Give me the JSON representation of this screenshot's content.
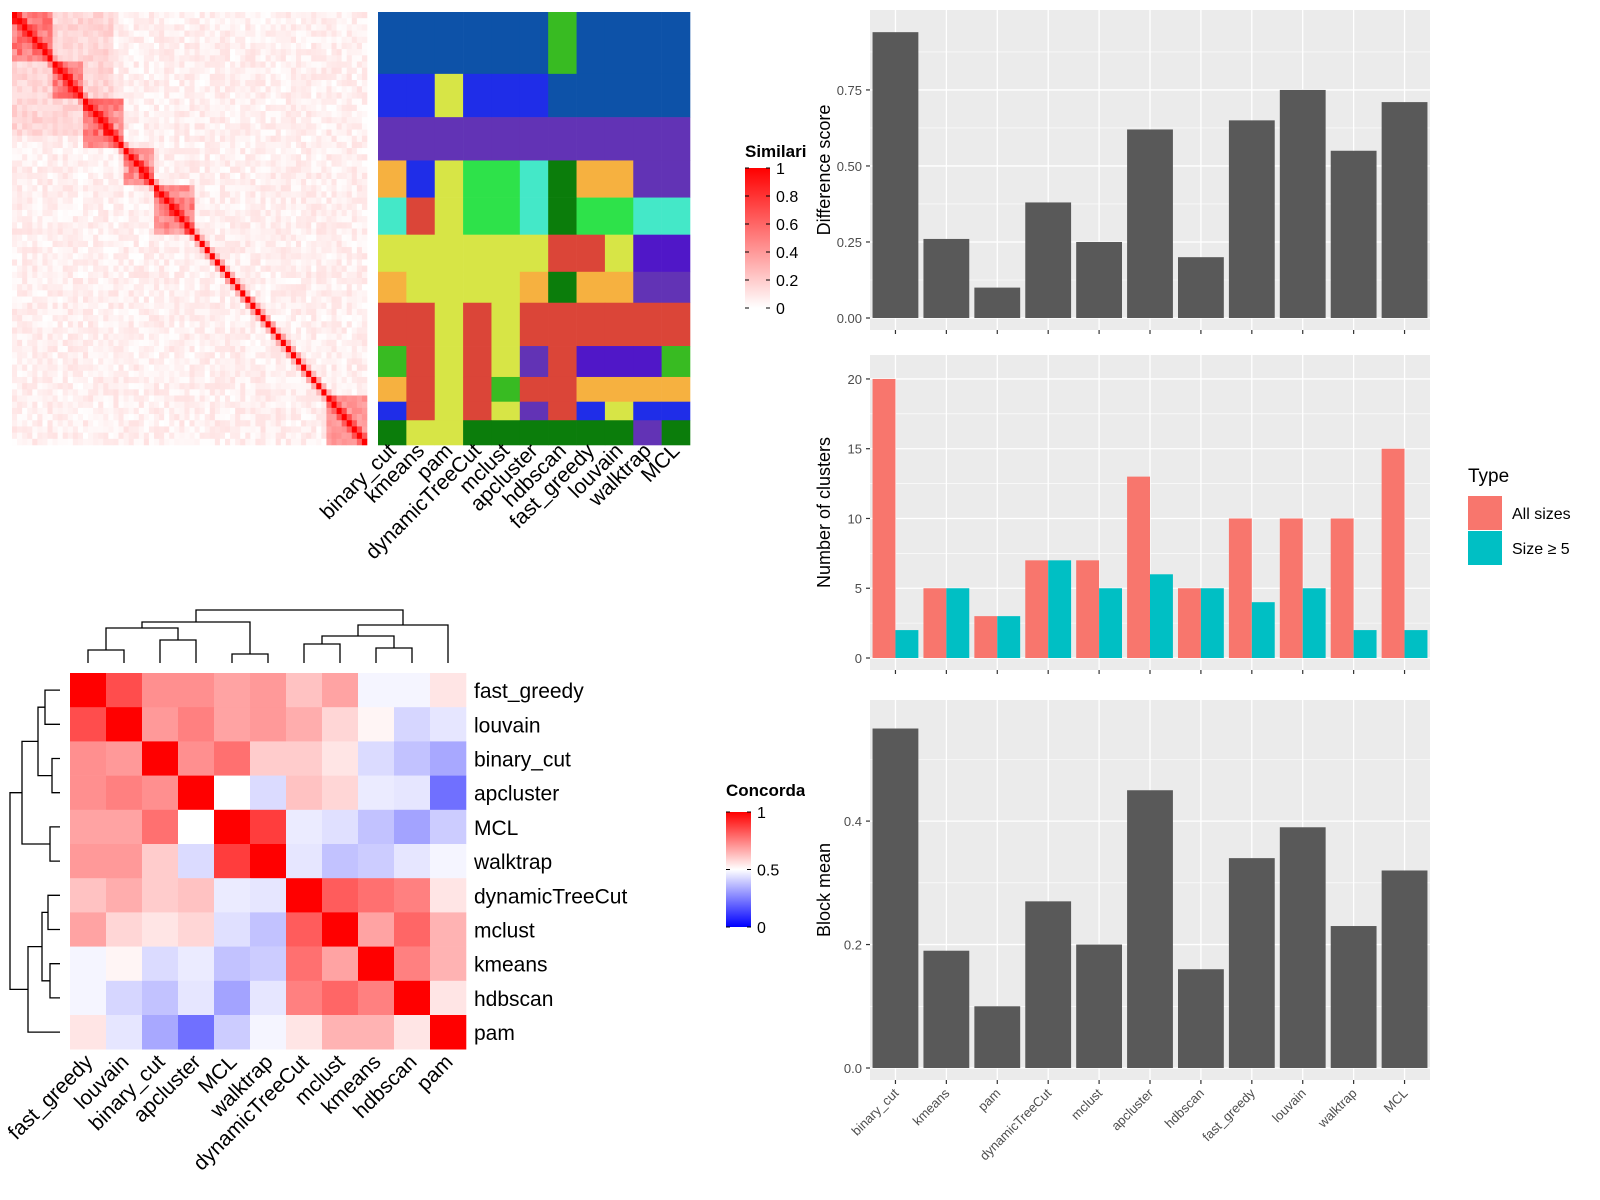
{
  "methods": [
    "binary_cut",
    "kmeans",
    "pam",
    "dynamicTreeCut",
    "mclust",
    "apcluster",
    "hdbscan",
    "fast_greedy",
    "louvain",
    "walktrap",
    "MCL"
  ],
  "colors": {
    "bar": "#595959",
    "panel_bg": "#ebebeb",
    "grid": "#ffffff",
    "all_sizes": "#f8766d",
    "size5": "#00bfc4",
    "sim_high": "#ff0000",
    "sim_low": "#ffffff",
    "conc_high": "#ff0000",
    "conc_mid": "#ffffff",
    "conc_low": "#0000ff"
  },
  "similarity_heatmap": {
    "legend_title": "Similarity",
    "legend_ticks": [
      "0",
      "0.2",
      "0.4",
      "0.6",
      "0.8",
      "1"
    ]
  },
  "membership_heatmap": {
    "column_labels": [
      "binary_cut",
      "kmeans",
      "pam",
      "dynamicTreeCut",
      "mclust",
      "apcluster",
      "hdbscan",
      "fast_greedy",
      "louvain",
      "walktrap",
      "MCL"
    ]
  },
  "concordance_heatmap": {
    "legend_title": "Concordance",
    "legend_ticks": [
      "0",
      "0.5",
      "1"
    ],
    "order": [
      "fast_greedy",
      "louvain",
      "binary_cut",
      "apcluster",
      "MCL",
      "walktrap",
      "dynamicTreeCut",
      "mclust",
      "kmeans",
      "hdbscan",
      "pam"
    ]
  },
  "legend_type": {
    "title": "Type",
    "items": [
      "All sizes",
      "Size ≥ 5"
    ]
  },
  "chart_data": [
    {
      "type": "bar",
      "categories": [
        "binary_cut",
        "kmeans",
        "pam",
        "dynamicTreeCut",
        "mclust",
        "apcluster",
        "hdbscan",
        "fast_greedy",
        "louvain",
        "walktrap",
        "MCL"
      ],
      "values": [
        0.94,
        0.26,
        0.1,
        0.38,
        0.25,
        0.62,
        0.2,
        0.65,
        0.75,
        0.55,
        0.71
      ],
      "ylabel": "Difference score",
      "yticks": [
        "0.00",
        "0.25",
        "0.50",
        "0.75"
      ],
      "ylim": [
        0,
        0.98
      ]
    },
    {
      "type": "bar",
      "categories": [
        "binary_cut",
        "kmeans",
        "pam",
        "dynamicTreeCut",
        "mclust",
        "apcluster",
        "hdbscan",
        "fast_greedy",
        "louvain",
        "walktrap",
        "MCL"
      ],
      "series": [
        {
          "name": "All sizes",
          "values": [
            20,
            5,
            3,
            7,
            7,
            13,
            5,
            10,
            10,
            10,
            15
          ]
        },
        {
          "name": "Size ≥ 5",
          "values": [
            2,
            5,
            3,
            7,
            5,
            6,
            5,
            4,
            5,
            2,
            2
          ]
        }
      ],
      "ylabel": "Number of clusters",
      "yticks": [
        "0",
        "5",
        "10",
        "15",
        "20"
      ],
      "ylim": [
        0,
        21
      ],
      "legend": "right"
    },
    {
      "type": "bar",
      "categories": [
        "binary_cut",
        "kmeans",
        "pam",
        "dynamicTreeCut",
        "mclust",
        "apcluster",
        "hdbscan",
        "fast_greedy",
        "louvain",
        "walktrap",
        "MCL"
      ],
      "values": [
        0.55,
        0.19,
        0.1,
        0.27,
        0.2,
        0.45,
        0.16,
        0.34,
        0.39,
        0.23,
        0.32
      ],
      "ylabel": "Block mean",
      "yticks": [
        "0.0",
        "0.2",
        "0.4"
      ],
      "ylim": [
        0,
        0.58
      ]
    },
    {
      "type": "heatmap",
      "rows": [
        "fast_greedy",
        "louvain",
        "binary_cut",
        "apcluster",
        "MCL",
        "walktrap",
        "dynamicTreeCut",
        "mclust",
        "kmeans",
        "hdbscan",
        "pam"
      ],
      "columns": [
        "fast_greedy",
        "louvain",
        "binary_cut",
        "apcluster",
        "MCL",
        "walktrap",
        "dynamicTreeCut",
        "mclust",
        "kmeans",
        "hdbscan",
        "pam"
      ],
      "values": [
        [
          1.0,
          0.85,
          0.72,
          0.72,
          0.68,
          0.7,
          0.62,
          0.68,
          0.48,
          0.48,
          0.55
        ],
        [
          0.85,
          1.0,
          0.7,
          0.75,
          0.68,
          0.7,
          0.66,
          0.58,
          0.52,
          0.42,
          0.45
        ],
        [
          0.72,
          0.7,
          1.0,
          0.72,
          0.78,
          0.6,
          0.6,
          0.55,
          0.43,
          0.38,
          0.33
        ],
        [
          0.72,
          0.75,
          0.72,
          1.0,
          0.5,
          0.43,
          0.62,
          0.58,
          0.46,
          0.45,
          0.22
        ],
        [
          0.68,
          0.68,
          0.78,
          0.5,
          1.0,
          0.88,
          0.46,
          0.44,
          0.38,
          0.32,
          0.4
        ],
        [
          0.7,
          0.7,
          0.6,
          0.43,
          0.88,
          1.0,
          0.45,
          0.38,
          0.4,
          0.45,
          0.48
        ],
        [
          0.62,
          0.66,
          0.6,
          0.62,
          0.46,
          0.45,
          1.0,
          0.82,
          0.78,
          0.75,
          0.55
        ],
        [
          0.68,
          0.58,
          0.55,
          0.58,
          0.44,
          0.38,
          0.82,
          1.0,
          0.68,
          0.8,
          0.65
        ],
        [
          0.48,
          0.52,
          0.43,
          0.46,
          0.38,
          0.4,
          0.78,
          0.68,
          1.0,
          0.75,
          0.65
        ],
        [
          0.48,
          0.42,
          0.38,
          0.45,
          0.32,
          0.45,
          0.75,
          0.8,
          0.75,
          1.0,
          0.55
        ],
        [
          0.55,
          0.45,
          0.33,
          0.22,
          0.4,
          0.48,
          0.55,
          0.65,
          0.65,
          0.55,
          1.0
        ]
      ]
    }
  ]
}
